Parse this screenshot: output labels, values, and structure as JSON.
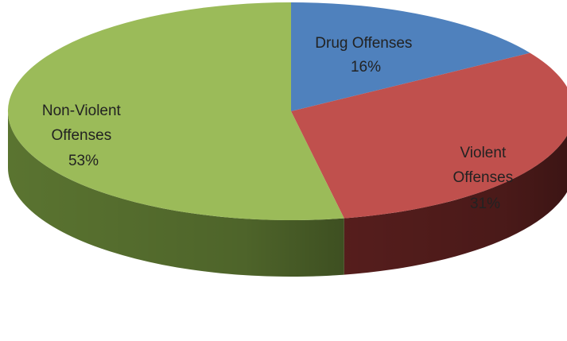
{
  "chart_data": {
    "type": "pie",
    "style": "3d",
    "title": "",
    "start_angle_deg": 90,
    "direction": "clockwise",
    "slices": [
      {
        "category": "Drug Offenses",
        "label_lines": [
          "Drug Offenses",
          "16%"
        ],
        "value": 16,
        "percent_label": "16%",
        "color": "#4F81BD",
        "side_color": "#2E4A6E"
      },
      {
        "category": "Violent Offenses",
        "label_lines": [
          "Violent",
          "Offenses",
          "31%"
        ],
        "value": 31,
        "percent_label": "31%",
        "color": "#C0504D",
        "side_color": "#5A1F1E"
      },
      {
        "category": "Non-Violent Offenses",
        "label_lines": [
          "Non-Violent",
          "Offenses",
          "53%"
        ],
        "value": 53,
        "percent_label": "53%",
        "color": "#9BBB59",
        "side_color": "#5F7A33"
      }
    ],
    "legend": "none"
  }
}
